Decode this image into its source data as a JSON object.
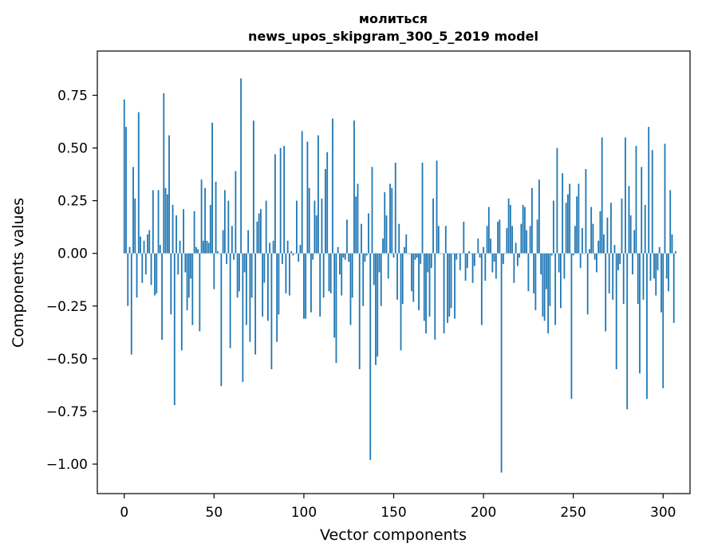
{
  "chart_data": {
    "type": "bar",
    "title": "молиться",
    "subtitle": "news_upos_skipgram_300_5_2019 model",
    "xlabel": "Vector components",
    "ylabel": "Components values",
    "xlim": [
      -15,
      315
    ],
    "ylim": [
      -1.14,
      0.96
    ],
    "x_ticks": [
      0,
      50,
      100,
      150,
      200,
      250,
      300
    ],
    "x_tick_labels": [
      "0",
      "50",
      "100",
      "150",
      "200",
      "250",
      "300"
    ],
    "y_ticks": [
      -1.0,
      -0.75,
      -0.5,
      -0.25,
      0.0,
      0.25,
      0.5,
      0.75
    ],
    "y_tick_labels": [
      "−1.00",
      "−0.75",
      "−0.50",
      "−0.25",
      "0.00",
      "0.25",
      "0.50",
      "0.75"
    ],
    "bar_color": "#1f77b4",
    "values": [
      0.73,
      0.6,
      -0.25,
      0.03,
      -0.48,
      0.41,
      0.26,
      -0.21,
      0.67,
      0.08,
      -0.14,
      0.06,
      -0.1,
      0.09,
      0.11,
      -0.15,
      0.3,
      -0.2,
      -0.19,
      0.3,
      0.04,
      -0.41,
      0.76,
      0.31,
      0.28,
      0.56,
      -0.29,
      0.23,
      -0.72,
      0.18,
      -0.1,
      0.06,
      -0.46,
      0.21,
      -0.09,
      -0.27,
      -0.21,
      -0.12,
      -0.34,
      0.2,
      0.03,
      0.02,
      -0.37,
      0.35,
      0.06,
      0.31,
      0.06,
      0.05,
      0.23,
      0.62,
      -0.17,
      0.34,
      0.01,
      0.0,
      -0.63,
      0.11,
      0.3,
      -0.05,
      0.25,
      -0.45,
      0.13,
      -0.03,
      0.39,
      -0.21,
      -0.18,
      0.83,
      -0.61,
      -0.09,
      -0.34,
      0.11,
      -0.42,
      -0.21,
      0.63,
      -0.48,
      0.15,
      0.19,
      0.21,
      -0.3,
      -0.14,
      0.25,
      -0.32,
      0.05,
      -0.55,
      0.06,
      0.47,
      -0.42,
      -0.29,
      0.5,
      -0.05,
      0.51,
      -0.19,
      0.06,
      -0.2,
      0.01,
      -0.01,
      0.0,
      0.25,
      -0.04,
      0.04,
      0.58,
      -0.31,
      -0.31,
      0.53,
      0.31,
      -0.28,
      -0.03,
      0.25,
      0.18,
      0.56,
      -0.3,
      0.26,
      -0.21,
      0.4,
      0.48,
      -0.18,
      -0.19,
      0.64,
      -0.4,
      -0.52,
      0.03,
      -0.1,
      -0.2,
      -0.02,
      -0.03,
      0.16,
      -0.04,
      -0.34,
      -0.21,
      0.63,
      0.27,
      0.33,
      -0.55,
      0.14,
      -0.25,
      -0.04,
      -0.01,
      0.19,
      -0.98,
      0.41,
      -0.15,
      -0.53,
      -0.49,
      -0.09,
      -0.25,
      0.07,
      0.29,
      0.18,
      -0.12,
      0.33,
      0.31,
      -0.02,
      0.43,
      -0.22,
      0.14,
      -0.46,
      -0.24,
      0.03,
      0.09,
      0.0,
      0.0,
      -0.18,
      -0.23,
      -0.03,
      -0.02,
      -0.27,
      -0.05,
      0.43,
      -0.32,
      -0.38,
      -0.09,
      -0.3,
      -0.07,
      0.26,
      -0.41,
      0.44,
      0.13,
      0.0,
      0.0,
      -0.38,
      0.13,
      -0.33,
      -0.3,
      -0.26,
      0.0,
      -0.31,
      -0.03,
      0.0,
      -0.08,
      0.0,
      0.15,
      -0.13,
      -0.07,
      0.01,
      0.0,
      -0.14,
      -0.06,
      0.0,
      0.07,
      -0.02,
      -0.34,
      0.03,
      -0.13,
      0.13,
      0.22,
      0.07,
      -0.09,
      -0.04,
      -0.12,
      0.15,
      0.16,
      -1.04,
      -0.05,
      0.0,
      0.12,
      0.26,
      0.23,
      0.13,
      -0.14,
      0.05,
      -0.06,
      -0.02,
      0.14,
      0.23,
      0.22,
      0.11,
      -0.18,
      0.13,
      0.31,
      -0.19,
      -0.27,
      0.16,
      0.35,
      -0.1,
      -0.3,
      -0.32,
      -0.17,
      -0.38,
      -0.25,
      -0.01,
      0.25,
      -0.34,
      0.5,
      -0.09,
      -0.26,
      0.38,
      -0.12,
      0.24,
      0.28,
      0.33,
      -0.69,
      -0.01,
      0.13,
      0.27,
      0.33,
      -0.07,
      0.12,
      0.0,
      0.4,
      -0.29,
      0.02,
      0.22,
      0.14,
      -0.03,
      -0.09,
      0.06,
      0.2,
      0.55,
      0.09,
      -0.37,
      0.17,
      -0.19,
      0.24,
      -0.22,
      0.04,
      -0.55,
      -0.08,
      -0.05,
      0.26,
      -0.24,
      0.55,
      -0.74,
      0.32,
      0.18,
      -0.1,
      0.11,
      0.51,
      -0.24,
      -0.57,
      0.41,
      -0.22,
      0.23,
      -0.69,
      0.6,
      -0.13,
      0.49,
      -0.12,
      -0.2,
      -0.08,
      0.03,
      -0.28,
      -0.64,
      0.52,
      -0.12,
      -0.18,
      0.3,
      0.09,
      -0.33,
      0.01
    ]
  }
}
